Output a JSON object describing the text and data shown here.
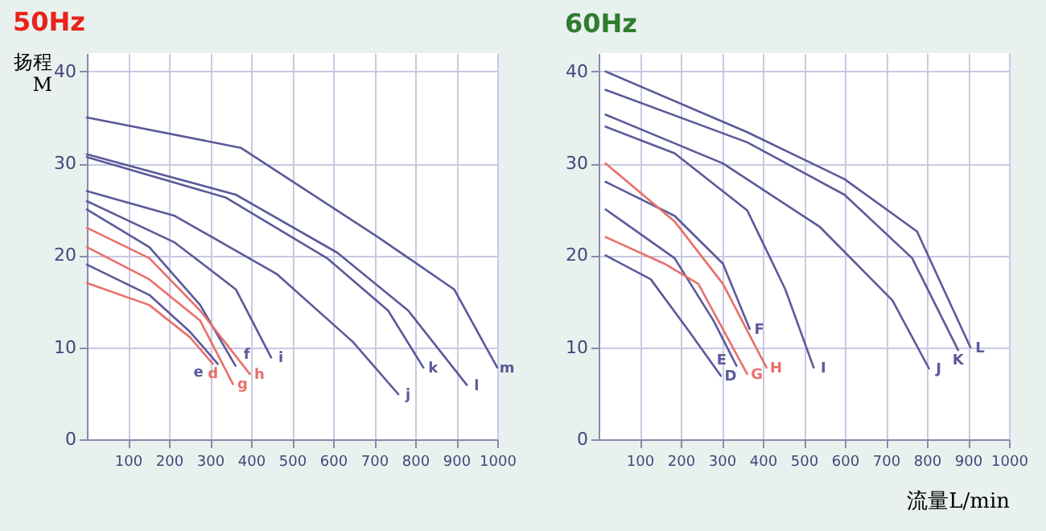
{
  "chart_data": [
    {
      "type": "line",
      "title": "50Hz",
      "ylabel": "扬程 M",
      "xlim": [
        0,
        1000
      ],
      "ylim": [
        0,
        42
      ],
      "xticks": [
        100,
        200,
        300,
        400,
        500,
        600,
        700,
        800,
        900,
        1000
      ],
      "yticks": [
        0,
        10,
        20,
        30,
        40
      ],
      "grid": true,
      "series": [
        {
          "name": "d",
          "color": "#e8706a",
          "x": [
            0,
            152,
            251,
            307
          ],
          "values": [
            17,
            14.6,
            11.1,
            8.2
          ]
        },
        {
          "name": "e",
          "color": "#5a5a9a",
          "x": [
            0,
            152,
            251,
            319
          ],
          "values": [
            19,
            15.7,
            11.7,
            8.2
          ]
        },
        {
          "name": "f",
          "color": "#5a5a9a",
          "x": [
            0,
            152,
            276,
            362
          ],
          "values": [
            25,
            20.9,
            14.6,
            8
          ]
        },
        {
          "name": "g",
          "color": "#e8706a",
          "x": [
            0,
            152,
            276,
            356
          ],
          "values": [
            20.9,
            17.4,
            12.9,
            6
          ]
        },
        {
          "name": "h",
          "color": "#e8706a",
          "x": [
            0,
            152,
            276,
            397
          ],
          "values": [
            23,
            19.7,
            14,
            7.1
          ]
        },
        {
          "name": "i",
          "color": "#5a5a9a",
          "x": [
            0,
            214,
            363,
            449
          ],
          "values": [
            25.9,
            21.4,
            16.3,
            8.9
          ]
        },
        {
          "name": "j",
          "color": "#5a5a9a",
          "x": [
            0,
            214,
            462,
            648,
            759
          ],
          "values": [
            27,
            24.3,
            18,
            10.6,
            4.9
          ]
        },
        {
          "name": "k",
          "color": "#5a5a9a",
          "x": [
            0,
            338,
            585,
            734,
            820
          ],
          "values": [
            30.7,
            26.3,
            19.7,
            14,
            7.8
          ]
        },
        {
          "name": "l",
          "color": "#5a5a9a",
          "x": [
            0,
            363,
            610,
            783,
            926
          ],
          "values": [
            31,
            26.6,
            20.3,
            14,
            5.9
          ]
        },
        {
          "name": "m",
          "color": "#5a5a9a",
          "x": [
            0,
            375,
            709,
            895,
            1000
          ],
          "values": [
            35,
            31.7,
            22,
            16.3,
            7.8
          ]
        }
      ]
    },
    {
      "type": "line",
      "title": "60Hz",
      "xlabel": "流量L/min",
      "xlim": [
        0,
        1000
      ],
      "ylim": [
        0,
        42
      ],
      "xticks": [
        100,
        200,
        300,
        400,
        500,
        600,
        700,
        800,
        900,
        1000
      ],
      "yticks": [
        0,
        10,
        20,
        30,
        40
      ],
      "grid": true,
      "series": [
        {
          "name": "D",
          "color": "#5a5a9a",
          "x": [
            17,
            127,
            221,
            298
          ],
          "values": [
            20,
            17.4,
            11.7,
            6.9
          ]
        },
        {
          "name": "E",
          "color": "#5a5a9a",
          "x": [
            17,
            185,
            280,
            336
          ],
          "values": [
            25,
            19.7,
            12.9,
            8
          ]
        },
        {
          "name": "F",
          "color": "#5a5a9a",
          "x": [
            17,
            185,
            303,
            368
          ],
          "values": [
            28,
            24.3,
            19.1,
            12
          ]
        },
        {
          "name": "G",
          "color": "#e8706a",
          "x": [
            17,
            160,
            243,
            362
          ],
          "values": [
            22,
            19.1,
            16.9,
            7.1
          ]
        },
        {
          "name": "H",
          "color": "#e8706a",
          "x": [
            17,
            185,
            303,
            409
          ],
          "values": [
            30,
            23.7,
            16.9,
            7.8
          ]
        },
        {
          "name": "I",
          "color": "#5a5a9a",
          "x": [
            17,
            185,
            362,
            455,
            524
          ],
          "values": [
            34,
            31.1,
            24.9,
            16.3,
            7.8
          ]
        },
        {
          "name": "J",
          "color": "#5a5a9a",
          "x": [
            17,
            303,
            539,
            716,
            805
          ],
          "values": [
            35.3,
            30,
            23.1,
            15.1,
            7.7
          ]
        },
        {
          "name": "K",
          "color": "#5a5a9a",
          "x": [
            17,
            362,
            599,
            764,
            876
          ],
          "values": [
            38,
            32.3,
            26.6,
            19.7,
            9.7
          ]
        },
        {
          "name": "L",
          "color": "#5a5a9a",
          "x": [
            17,
            362,
            599,
            776,
            906
          ],
          "values": [
            40,
            33.4,
            28.3,
            22.6,
            10
          ]
        }
      ]
    }
  ]
}
